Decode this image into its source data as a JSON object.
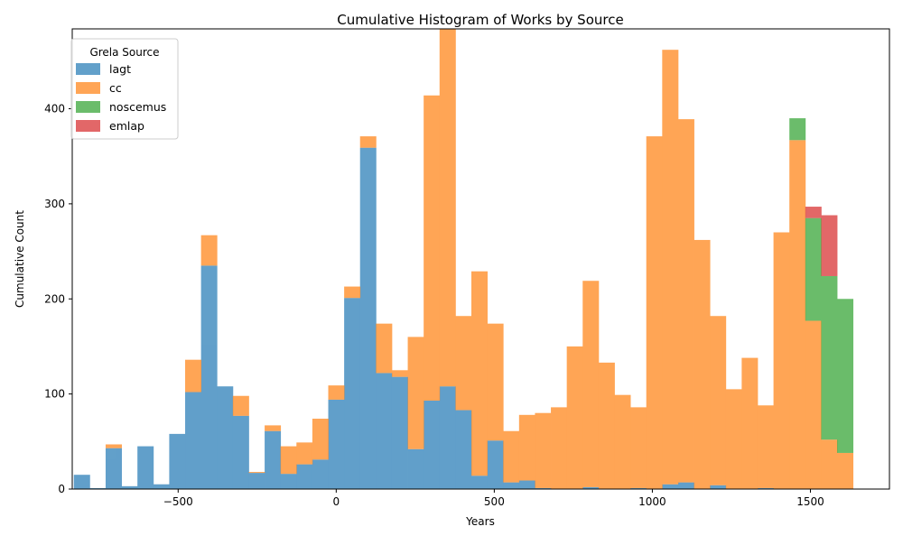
{
  "chart_data": {
    "type": "bar",
    "stacked": true,
    "title": "Cumulative Histogram of Works by Source",
    "xlabel": "Years",
    "ylabel": "Cumulative Count",
    "xlim": [
      -835,
      1750
    ],
    "ylim": [
      0,
      484
    ],
    "xticks": [
      -500,
      0,
      500,
      1000,
      1500
    ],
    "xtick_labels": [
      "−500",
      "0",
      "500",
      "1000",
      "1500"
    ],
    "yticks": [
      0,
      100,
      200,
      300,
      400
    ],
    "ytick_labels": [
      "0",
      "100",
      "200",
      "300",
      "400"
    ],
    "bin_start": -830,
    "bin_width": 50.3,
    "grid": false,
    "legend": {
      "title": "Grela Source",
      "position": "top-left"
    },
    "series": [
      {
        "name": "lagt",
        "color": "#1f77b4",
        "values": [
          15,
          1,
          43,
          3,
          45,
          5,
          58,
          102,
          235,
          108,
          77,
          17,
          61,
          16,
          26,
          31,
          94,
          201,
          359,
          122,
          118,
          42,
          93,
          108,
          83,
          14,
          51,
          7,
          9,
          1,
          0,
          0,
          2,
          0,
          0,
          1,
          0,
          5,
          7,
          0,
          4,
          0,
          0,
          1,
          0,
          0,
          0,
          0,
          0
        ]
      },
      {
        "name": "cc",
        "color": "#ff7f0e",
        "values": [
          0,
          0,
          4,
          0,
          0,
          0,
          0,
          34,
          32,
          0,
          21,
          1,
          6,
          29,
          23,
          43,
          15,
          12,
          12,
          52,
          7,
          118,
          321,
          378,
          99,
          215,
          123,
          54,
          69,
          79,
          86,
          150,
          217,
          133,
          99,
          85,
          371,
          457,
          382,
          262,
          178,
          105,
          138,
          87,
          270,
          367,
          177,
          52,
          38
        ]
      },
      {
        "name": "noscemus",
        "color": "#2ca02c",
        "values": [
          0,
          0,
          0,
          0,
          0,
          0,
          0,
          0,
          0,
          0,
          0,
          0,
          0,
          0,
          0,
          0,
          0,
          0,
          0,
          0,
          0,
          0,
          0,
          0,
          0,
          0,
          0,
          0,
          0,
          0,
          0,
          0,
          0,
          0,
          0,
          0,
          0,
          0,
          0,
          0,
          0,
          0,
          0,
          0,
          0,
          23,
          108,
          172,
          162
        ]
      },
      {
        "name": "emlap",
        "color": "#d62728",
        "values": [
          0,
          0,
          0,
          0,
          0,
          0,
          0,
          0,
          0,
          0,
          0,
          0,
          0,
          0,
          0,
          0,
          0,
          0,
          0,
          0,
          0,
          0,
          0,
          0,
          0,
          0,
          0,
          0,
          0,
          0,
          0,
          0,
          0,
          0,
          0,
          0,
          0,
          0,
          0,
          0,
          0,
          0,
          0,
          0,
          0,
          0,
          12,
          64,
          0
        ]
      }
    ]
  }
}
